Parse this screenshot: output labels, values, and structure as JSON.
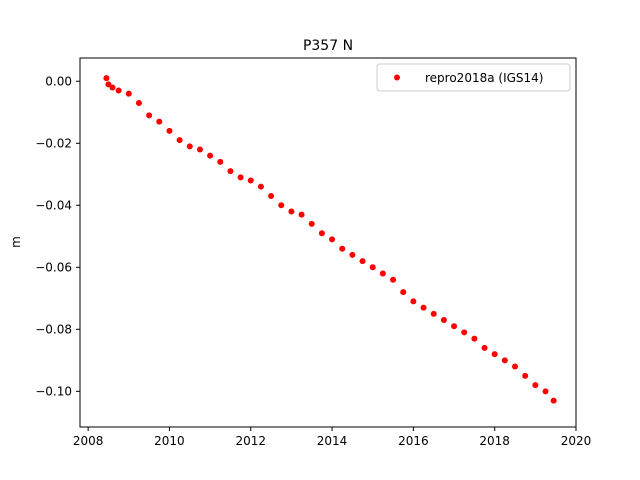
{
  "chart_data": {
    "type": "scatter",
    "title": "P357 N",
    "xlabel": "",
    "ylabel": "m",
    "xlim": [
      2007.8,
      2020.0
    ],
    "ylim": [
      -0.1115,
      0.0075
    ],
    "xticks": [
      2008,
      2010,
      2012,
      2014,
      2016,
      2018,
      2020
    ],
    "xtick_labels": [
      "2008",
      "2010",
      "2012",
      "2014",
      "2016",
      "2018",
      "2020"
    ],
    "yticks": [
      0.0,
      -0.02,
      -0.04,
      -0.06,
      -0.08,
      -0.1
    ],
    "ytick_labels": [
      "0.00",
      "−0.02",
      "−0.04",
      "−0.06",
      "−0.08",
      "−0.10"
    ],
    "grid": false,
    "legend_position": "upper right",
    "series": [
      {
        "name": "repro2018a (IGS14)",
        "color": "#ff0000",
        "marker": "dot",
        "x": [
          2008.45,
          2008.5,
          2008.6,
          2008.75,
          2009.0,
          2009.25,
          2009.5,
          2009.75,
          2010.0,
          2010.25,
          2010.5,
          2010.75,
          2011.0,
          2011.25,
          2011.5,
          2011.75,
          2012.0,
          2012.25,
          2012.5,
          2012.75,
          2013.0,
          2013.25,
          2013.5,
          2013.75,
          2014.0,
          2014.25,
          2014.5,
          2014.75,
          2015.0,
          2015.25,
          2015.5,
          2015.75,
          2016.0,
          2016.25,
          2016.5,
          2016.75,
          2017.0,
          2017.25,
          2017.5,
          2017.75,
          2018.0,
          2018.25,
          2018.5,
          2018.75,
          2019.0,
          2019.25,
          2019.45
        ],
        "y": [
          0.001,
          -0.001,
          -0.002,
          -0.003,
          -0.004,
          -0.007,
          -0.011,
          -0.013,
          -0.016,
          -0.019,
          -0.021,
          -0.022,
          -0.024,
          -0.026,
          -0.029,
          -0.031,
          -0.032,
          -0.034,
          -0.037,
          -0.04,
          -0.042,
          -0.043,
          -0.046,
          -0.049,
          -0.051,
          -0.054,
          -0.056,
          -0.058,
          -0.06,
          -0.062,
          -0.064,
          -0.068,
          -0.071,
          -0.073,
          -0.075,
          -0.077,
          -0.079,
          -0.081,
          -0.083,
          -0.086,
          -0.088,
          -0.09,
          -0.092,
          -0.095,
          -0.098,
          -0.1,
          -0.103
        ]
      }
    ]
  }
}
